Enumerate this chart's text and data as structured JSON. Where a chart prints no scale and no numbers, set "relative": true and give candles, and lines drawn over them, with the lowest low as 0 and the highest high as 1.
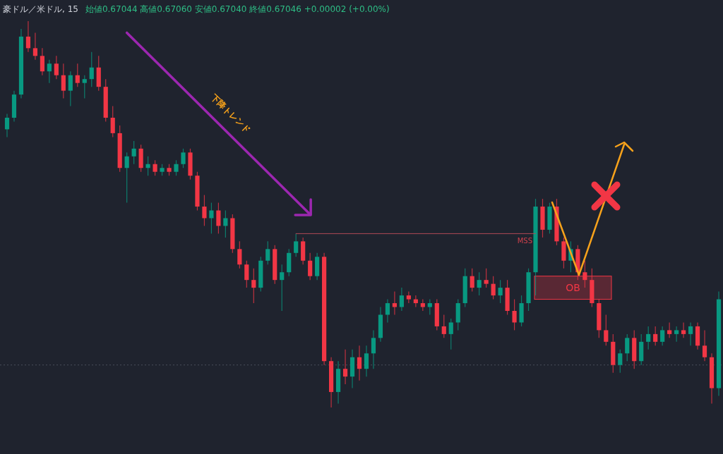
{
  "chart_data": {
    "type": "candlestick",
    "title": "豪ドル／米ドル, 15",
    "subtitle": "始値0.67044 高値0.67060 安値0.67040 終値0.67046 +0.00002 (+0.00%)",
    "relative": true,
    "categories": [
      null,
      null,
      null,
      null,
      null,
      null,
      null,
      null,
      null,
      null,
      null,
      null,
      null,
      null,
      null,
      null,
      null,
      null,
      null,
      null,
      null,
      null,
      null,
      null,
      null,
      null,
      null,
      null,
      null,
      null,
      null,
      null,
      null,
      null,
      null,
      null,
      null,
      null,
      null,
      null,
      null,
      null,
      null,
      null,
      null,
      null,
      null,
      null,
      null,
      null,
      null,
      null,
      null,
      null,
      null,
      null,
      null,
      null,
      null,
      null,
      null,
      null,
      null,
      null,
      null,
      null,
      null,
      null,
      null,
      null,
      null,
      null,
      null,
      null,
      null,
      null,
      null,
      null,
      null,
      null,
      null,
      null,
      null,
      null,
      null,
      null,
      null,
      null,
      null,
      null,
      null,
      null,
      null,
      null,
      null,
      null,
      null,
      null,
      null,
      null,
      null,
      null
    ],
    "ohlc": [
      [
        0.72,
        0.76,
        0.7,
        0.75
      ],
      [
        0.75,
        0.82,
        0.74,
        0.81
      ],
      [
        0.81,
        0.98,
        0.8,
        0.96
      ],
      [
        0.96,
        1.0,
        0.92,
        0.93
      ],
      [
        0.93,
        0.97,
        0.9,
        0.91
      ],
      [
        0.91,
        0.93,
        0.86,
        0.87
      ],
      [
        0.87,
        0.9,
        0.84,
        0.89
      ],
      [
        0.89,
        0.91,
        0.85,
        0.86
      ],
      [
        0.86,
        0.89,
        0.8,
        0.82
      ],
      [
        0.82,
        0.87,
        0.78,
        0.86
      ],
      [
        0.86,
        0.89,
        0.83,
        0.84
      ],
      [
        0.84,
        0.86,
        0.8,
        0.85
      ],
      [
        0.85,
        0.92,
        0.83,
        0.88
      ],
      [
        0.88,
        0.91,
        0.82,
        0.83
      ],
      [
        0.83,
        0.85,
        0.74,
        0.75
      ],
      [
        0.75,
        0.78,
        0.7,
        0.71
      ],
      [
        0.71,
        0.73,
        0.61,
        0.62
      ],
      [
        0.62,
        0.66,
        0.53,
        0.65
      ],
      [
        0.65,
        0.69,
        0.63,
        0.67
      ],
      [
        0.67,
        0.68,
        0.61,
        0.62
      ],
      [
        0.62,
        0.65,
        0.6,
        0.63
      ],
      [
        0.63,
        0.64,
        0.6,
        0.61
      ],
      [
        0.61,
        0.63,
        0.6,
        0.62
      ],
      [
        0.62,
        0.63,
        0.6,
        0.61
      ],
      [
        0.61,
        0.64,
        0.6,
        0.63
      ],
      [
        0.63,
        0.67,
        0.62,
        0.66
      ],
      [
        0.66,
        0.67,
        0.59,
        0.6
      ],
      [
        0.6,
        0.61,
        0.51,
        0.52
      ],
      [
        0.52,
        0.55,
        0.47,
        0.49
      ],
      [
        0.49,
        0.53,
        0.45,
        0.51
      ],
      [
        0.51,
        0.53,
        0.45,
        0.47
      ],
      [
        0.47,
        0.51,
        0.44,
        0.49
      ],
      [
        0.49,
        0.5,
        0.4,
        0.41
      ],
      [
        0.41,
        0.43,
        0.36,
        0.37
      ],
      [
        0.37,
        0.38,
        0.31,
        0.33
      ],
      [
        0.33,
        0.36,
        0.27,
        0.31
      ],
      [
        0.31,
        0.39,
        0.3,
        0.38
      ],
      [
        0.38,
        0.43,
        0.37,
        0.41
      ],
      [
        0.41,
        0.42,
        0.32,
        0.33
      ],
      [
        0.33,
        0.37,
        0.25,
        0.35
      ],
      [
        0.35,
        0.41,
        0.34,
        0.4
      ],
      [
        0.4,
        0.45,
        0.39,
        0.43
      ],
      [
        0.43,
        0.44,
        0.37,
        0.38
      ],
      [
        0.38,
        0.4,
        0.33,
        0.34
      ],
      [
        0.34,
        0.4,
        0.33,
        0.39
      ],
      [
        0.39,
        0.4,
        0.11,
        0.12
      ],
      [
        0.12,
        0.13,
        0.0,
        0.04
      ],
      [
        0.04,
        0.12,
        0.01,
        0.1
      ],
      [
        0.1,
        0.15,
        0.06,
        0.08
      ],
      [
        0.08,
        0.15,
        0.05,
        0.13
      ],
      [
        0.13,
        0.16,
        0.07,
        0.1
      ],
      [
        0.1,
        0.16,
        0.08,
        0.14
      ],
      [
        0.14,
        0.2,
        0.1,
        0.18
      ],
      [
        0.18,
        0.26,
        0.17,
        0.24
      ],
      [
        0.24,
        0.28,
        0.22,
        0.27
      ],
      [
        0.27,
        0.3,
        0.24,
        0.26
      ],
      [
        0.26,
        0.31,
        0.25,
        0.29
      ],
      [
        0.29,
        0.3,
        0.27,
        0.28
      ],
      [
        0.28,
        0.29,
        0.26,
        0.27
      ],
      [
        0.27,
        0.28,
        0.25,
        0.26
      ],
      [
        0.26,
        0.28,
        0.24,
        0.27
      ],
      [
        0.27,
        0.28,
        0.2,
        0.21
      ],
      [
        0.21,
        0.24,
        0.18,
        0.19
      ],
      [
        0.19,
        0.23,
        0.15,
        0.22
      ],
      [
        0.22,
        0.28,
        0.2,
        0.27
      ],
      [
        0.27,
        0.36,
        0.26,
        0.34
      ],
      [
        0.34,
        0.36,
        0.3,
        0.31
      ],
      [
        0.31,
        0.35,
        0.29,
        0.33
      ],
      [
        0.33,
        0.36,
        0.31,
        0.32
      ],
      [
        0.32,
        0.34,
        0.28,
        0.29
      ],
      [
        0.29,
        0.33,
        0.27,
        0.31
      ],
      [
        0.31,
        0.33,
        0.24,
        0.25
      ],
      [
        0.25,
        0.28,
        0.2,
        0.22
      ],
      [
        0.22,
        0.29,
        0.21,
        0.27
      ],
      [
        0.27,
        0.36,
        0.25,
        0.35
      ],
      [
        0.35,
        0.54,
        0.29,
        0.52
      ],
      [
        0.52,
        0.54,
        0.44,
        0.46
      ],
      [
        0.46,
        0.53,
        0.45,
        0.52
      ],
      [
        0.52,
        0.54,
        0.42,
        0.43
      ],
      [
        0.43,
        0.44,
        0.36,
        0.38
      ],
      [
        0.38,
        0.43,
        0.35,
        0.41
      ],
      [
        0.41,
        0.42,
        0.33,
        0.35
      ],
      [
        0.35,
        0.38,
        0.31,
        0.33
      ],
      [
        0.33,
        0.36,
        0.26,
        0.27
      ],
      [
        0.27,
        0.28,
        0.18,
        0.2
      ],
      [
        0.2,
        0.24,
        0.16,
        0.17
      ],
      [
        0.17,
        0.19,
        0.09,
        0.11
      ],
      [
        0.11,
        0.15,
        0.09,
        0.14
      ],
      [
        0.14,
        0.19,
        0.12,
        0.18
      ],
      [
        0.18,
        0.2,
        0.1,
        0.12
      ],
      [
        0.12,
        0.19,
        0.11,
        0.17
      ],
      [
        0.17,
        0.21,
        0.15,
        0.19
      ],
      [
        0.19,
        0.21,
        0.16,
        0.17
      ],
      [
        0.17,
        0.21,
        0.16,
        0.2
      ],
      [
        0.2,
        0.22,
        0.18,
        0.19
      ],
      [
        0.19,
        0.21,
        0.17,
        0.2
      ],
      [
        0.2,
        0.22,
        0.18,
        0.19
      ],
      [
        0.19,
        0.22,
        0.16,
        0.21
      ],
      [
        0.21,
        0.22,
        0.15,
        0.16
      ],
      [
        0.16,
        0.2,
        0.12,
        0.13
      ],
      [
        0.13,
        0.14,
        0.01,
        0.05
      ],
      [
        0.05,
        0.3,
        0.03,
        0.28
      ]
    ],
    "colors": [
      "#089981",
      "#089981",
      "#089981",
      "#f23645",
      "#f23645",
      "#f23645",
      "#089981",
      "#f23645",
      "#f23645",
      "#089981",
      "#f23645",
      "#089981",
      "#089981",
      "#f23645",
      "#f23645",
      "#f23645",
      "#f23645",
      "#089981",
      "#089981",
      "#f23645",
      "#089981",
      "#f23645",
      "#089981",
      "#f23645",
      "#089981",
      "#089981",
      "#f23645",
      "#f23645",
      "#f23645",
      "#089981",
      "#f23645",
      "#089981",
      "#f23645",
      "#f23645",
      "#f23645",
      "#f23645",
      "#089981",
      "#089981",
      "#f23645",
      "#089981",
      "#089981",
      "#089981",
      "#f23645",
      "#f23645",
      "#089981",
      "#f23645",
      "#f23645",
      "#089981",
      "#f23645",
      "#089981",
      "#f23645",
      "#089981",
      "#089981",
      "#089981",
      "#089981",
      "#f23645",
      "#089981",
      "#f23645",
      "#f23645",
      "#f23645",
      "#089981",
      "#f23645",
      "#f23645",
      "#089981",
      "#089981",
      "#089981",
      "#f23645",
      "#089981",
      "#f23645",
      "#f23645",
      "#089981",
      "#f23645",
      "#f23645",
      "#089981",
      "#089981",
      "#089981",
      "#f23645",
      "#089981",
      "#f23645",
      "#f23645",
      "#089981",
      "#f23645",
      "#f23645",
      "#f23645",
      "#f23645",
      "#f23645",
      "#f23645",
      "#089981",
      "#089981",
      "#f23645",
      "#089981",
      "#089981",
      "#f23645",
      "#089981",
      "#f23645",
      "#089981",
      "#f23645",
      "#089981",
      "#f23645",
      "#f23645",
      "#f23645",
      "#089981"
    ],
    "ref_lines": [
      {
        "axis": "y",
        "value": 0.11,
        "color": "#4a4f5c",
        "line_style": "dotted"
      }
    ],
    "bands": [
      {
        "axis": "y",
        "from": 0.28,
        "to": 0.34,
        "label": "OB",
        "color": "#f23645"
      }
    ],
    "series": [
      {
        "type": "line",
        "color": "#9c27b0",
        "values": [
          null,
          null,
          null,
          null,
          null,
          null,
          null,
          null,
          null,
          null,
          null,
          null,
          null,
          null,
          null,
          null,
          null,
          0.97,
          null,
          null,
          null,
          null,
          null,
          null,
          null,
          null,
          null,
          null,
          null,
          null,
          null,
          null,
          null,
          null,
          null,
          null,
          null,
          null,
          null,
          null,
          null,
          null,
          null,
          0.5,
          null,
          null,
          null,
          null,
          null,
          null,
          null,
          null,
          null,
          null,
          null,
          null,
          null,
          null,
          null,
          null,
          null,
          null,
          null,
          null,
          null,
          null,
          null,
          null,
          null,
          null,
          null,
          null,
          null,
          null,
          null,
          null,
          null,
          null,
          null,
          null,
          null,
          null,
          null,
          null,
          null,
          null,
          null,
          null,
          null,
          null,
          null,
          null,
          null,
          null,
          null,
          null,
          null,
          null,
          null,
          null,
          null,
          null
        ]
      },
      {
        "type": "line",
        "color": "#b04a55",
        "values": [
          null,
          null,
          null,
          null,
          null,
          null,
          null,
          null,
          null,
          null,
          null,
          null,
          null,
          null,
          null,
          null,
          null,
          null,
          null,
          null,
          null,
          null,
          null,
          null,
          null,
          null,
          null,
          null,
          null,
          null,
          null,
          null,
          null,
          null,
          null,
          null,
          null,
          null,
          null,
          null,
          null,
          0.45,
          null,
          null,
          null,
          null,
          null,
          null,
          null,
          null,
          null,
          null,
          null,
          null,
          null,
          null,
          null,
          null,
          null,
          null,
          null,
          null,
          null,
          null,
          null,
          null,
          null,
          null,
          null,
          null,
          null,
          null,
          null,
          null,
          null,
          0.45,
          null,
          null,
          null,
          null,
          null,
          null,
          null,
          null,
          null,
          null,
          null,
          null,
          null,
          null,
          null,
          null,
          null,
          null,
          null,
          null,
          null,
          null,
          null,
          null,
          null,
          null
        ]
      }
    ],
    "annotations": [
      "下降トレンド",
      {
        "text": "MSS",
        "y": 0.45
      }
    ]
  }
}
